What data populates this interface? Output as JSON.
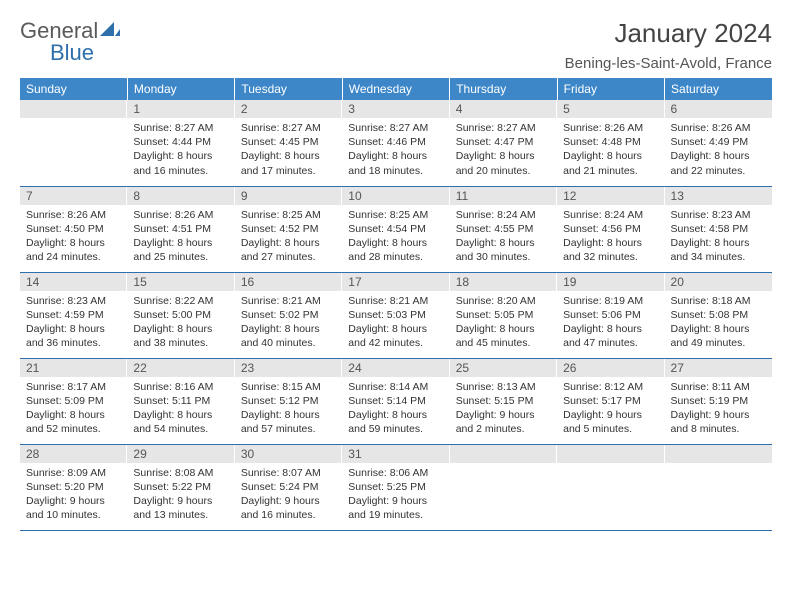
{
  "brand": {
    "word1": "General",
    "word2": "Blue"
  },
  "header": {
    "month_title": "January 2024",
    "location": "Bening-les-Saint-Avold, France"
  },
  "colors": {
    "header_bg": "#3d87c9",
    "header_text": "#ffffff",
    "daynum_bg": "#e6e6e6",
    "rule": "#2f6fab",
    "brand_blue": "#2f6fab",
    "brand_gray": "#5a5a5a"
  },
  "weekdays": [
    "Sunday",
    "Monday",
    "Tuesday",
    "Wednesday",
    "Thursday",
    "Friday",
    "Saturday"
  ],
  "weeks": [
    [
      {
        "day": "",
        "sunrise": "",
        "sunset": "",
        "daylight": ""
      },
      {
        "day": "1",
        "sunrise": "Sunrise: 8:27 AM",
        "sunset": "Sunset: 4:44 PM",
        "daylight": "Daylight: 8 hours and 16 minutes."
      },
      {
        "day": "2",
        "sunrise": "Sunrise: 8:27 AM",
        "sunset": "Sunset: 4:45 PM",
        "daylight": "Daylight: 8 hours and 17 minutes."
      },
      {
        "day": "3",
        "sunrise": "Sunrise: 8:27 AM",
        "sunset": "Sunset: 4:46 PM",
        "daylight": "Daylight: 8 hours and 18 minutes."
      },
      {
        "day": "4",
        "sunrise": "Sunrise: 8:27 AM",
        "sunset": "Sunset: 4:47 PM",
        "daylight": "Daylight: 8 hours and 20 minutes."
      },
      {
        "day": "5",
        "sunrise": "Sunrise: 8:26 AM",
        "sunset": "Sunset: 4:48 PM",
        "daylight": "Daylight: 8 hours and 21 minutes."
      },
      {
        "day": "6",
        "sunrise": "Sunrise: 8:26 AM",
        "sunset": "Sunset: 4:49 PM",
        "daylight": "Daylight: 8 hours and 22 minutes."
      }
    ],
    [
      {
        "day": "7",
        "sunrise": "Sunrise: 8:26 AM",
        "sunset": "Sunset: 4:50 PM",
        "daylight": "Daylight: 8 hours and 24 minutes."
      },
      {
        "day": "8",
        "sunrise": "Sunrise: 8:26 AM",
        "sunset": "Sunset: 4:51 PM",
        "daylight": "Daylight: 8 hours and 25 minutes."
      },
      {
        "day": "9",
        "sunrise": "Sunrise: 8:25 AM",
        "sunset": "Sunset: 4:52 PM",
        "daylight": "Daylight: 8 hours and 27 minutes."
      },
      {
        "day": "10",
        "sunrise": "Sunrise: 8:25 AM",
        "sunset": "Sunset: 4:54 PM",
        "daylight": "Daylight: 8 hours and 28 minutes."
      },
      {
        "day": "11",
        "sunrise": "Sunrise: 8:24 AM",
        "sunset": "Sunset: 4:55 PM",
        "daylight": "Daylight: 8 hours and 30 minutes."
      },
      {
        "day": "12",
        "sunrise": "Sunrise: 8:24 AM",
        "sunset": "Sunset: 4:56 PM",
        "daylight": "Daylight: 8 hours and 32 minutes."
      },
      {
        "day": "13",
        "sunrise": "Sunrise: 8:23 AM",
        "sunset": "Sunset: 4:58 PM",
        "daylight": "Daylight: 8 hours and 34 minutes."
      }
    ],
    [
      {
        "day": "14",
        "sunrise": "Sunrise: 8:23 AM",
        "sunset": "Sunset: 4:59 PM",
        "daylight": "Daylight: 8 hours and 36 minutes."
      },
      {
        "day": "15",
        "sunrise": "Sunrise: 8:22 AM",
        "sunset": "Sunset: 5:00 PM",
        "daylight": "Daylight: 8 hours and 38 minutes."
      },
      {
        "day": "16",
        "sunrise": "Sunrise: 8:21 AM",
        "sunset": "Sunset: 5:02 PM",
        "daylight": "Daylight: 8 hours and 40 minutes."
      },
      {
        "day": "17",
        "sunrise": "Sunrise: 8:21 AM",
        "sunset": "Sunset: 5:03 PM",
        "daylight": "Daylight: 8 hours and 42 minutes."
      },
      {
        "day": "18",
        "sunrise": "Sunrise: 8:20 AM",
        "sunset": "Sunset: 5:05 PM",
        "daylight": "Daylight: 8 hours and 45 minutes."
      },
      {
        "day": "19",
        "sunrise": "Sunrise: 8:19 AM",
        "sunset": "Sunset: 5:06 PM",
        "daylight": "Daylight: 8 hours and 47 minutes."
      },
      {
        "day": "20",
        "sunrise": "Sunrise: 8:18 AM",
        "sunset": "Sunset: 5:08 PM",
        "daylight": "Daylight: 8 hours and 49 minutes."
      }
    ],
    [
      {
        "day": "21",
        "sunrise": "Sunrise: 8:17 AM",
        "sunset": "Sunset: 5:09 PM",
        "daylight": "Daylight: 8 hours and 52 minutes."
      },
      {
        "day": "22",
        "sunrise": "Sunrise: 8:16 AM",
        "sunset": "Sunset: 5:11 PM",
        "daylight": "Daylight: 8 hours and 54 minutes."
      },
      {
        "day": "23",
        "sunrise": "Sunrise: 8:15 AM",
        "sunset": "Sunset: 5:12 PM",
        "daylight": "Daylight: 8 hours and 57 minutes."
      },
      {
        "day": "24",
        "sunrise": "Sunrise: 8:14 AM",
        "sunset": "Sunset: 5:14 PM",
        "daylight": "Daylight: 8 hours and 59 minutes."
      },
      {
        "day": "25",
        "sunrise": "Sunrise: 8:13 AM",
        "sunset": "Sunset: 5:15 PM",
        "daylight": "Daylight: 9 hours and 2 minutes."
      },
      {
        "day": "26",
        "sunrise": "Sunrise: 8:12 AM",
        "sunset": "Sunset: 5:17 PM",
        "daylight": "Daylight: 9 hours and 5 minutes."
      },
      {
        "day": "27",
        "sunrise": "Sunrise: 8:11 AM",
        "sunset": "Sunset: 5:19 PM",
        "daylight": "Daylight: 9 hours and 8 minutes."
      }
    ],
    [
      {
        "day": "28",
        "sunrise": "Sunrise: 8:09 AM",
        "sunset": "Sunset: 5:20 PM",
        "daylight": "Daylight: 9 hours and 10 minutes."
      },
      {
        "day": "29",
        "sunrise": "Sunrise: 8:08 AM",
        "sunset": "Sunset: 5:22 PM",
        "daylight": "Daylight: 9 hours and 13 minutes."
      },
      {
        "day": "30",
        "sunrise": "Sunrise: 8:07 AM",
        "sunset": "Sunset: 5:24 PM",
        "daylight": "Daylight: 9 hours and 16 minutes."
      },
      {
        "day": "31",
        "sunrise": "Sunrise: 8:06 AM",
        "sunset": "Sunset: 5:25 PM",
        "daylight": "Daylight: 9 hours and 19 minutes."
      },
      {
        "day": "",
        "sunrise": "",
        "sunset": "",
        "daylight": ""
      },
      {
        "day": "",
        "sunrise": "",
        "sunset": "",
        "daylight": ""
      },
      {
        "day": "",
        "sunrise": "",
        "sunset": "",
        "daylight": ""
      }
    ]
  ]
}
